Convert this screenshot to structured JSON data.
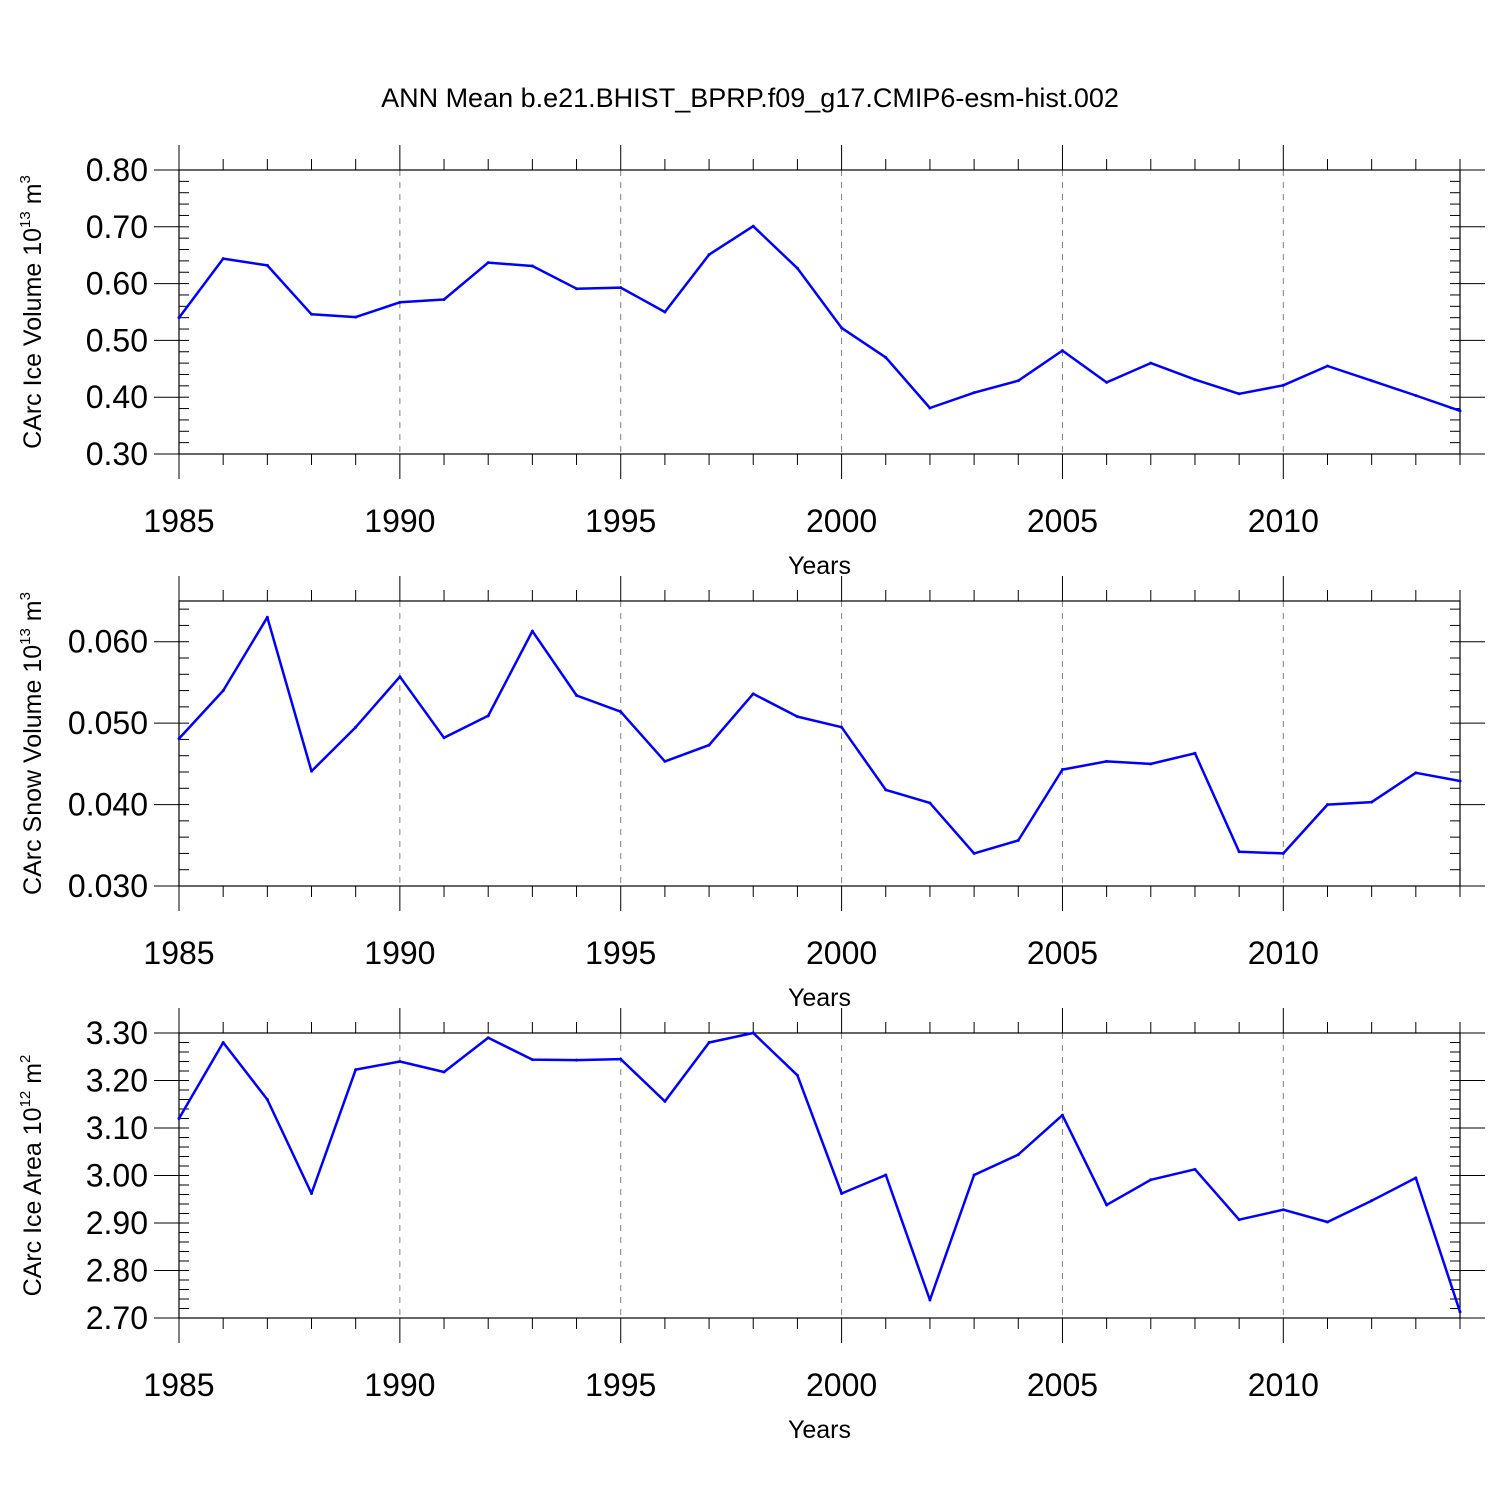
{
  "figure": {
    "title": "ANN Mean b.e21.BHIST_BPRP.f09_g17.CMIP6-esm-hist.002"
  },
  "colors": {
    "line": "#0000ff",
    "axis": "#000000",
    "grid": "#808080"
  },
  "chart_data": [
    {
      "type": "line",
      "xlabel": "Years",
      "ylabel_main": "CArc Ice Volume 10",
      "ylabel_exp": "13",
      "ylabel_unit": " m",
      "ylabel_unit_exp": "3",
      "xlim": [
        1985,
        2014
      ],
      "ylim": [
        0.3,
        0.8
      ],
      "xticks": [
        1985,
        1990,
        1995,
        2000,
        2005,
        2010
      ],
      "xtick_labels": [
        "1985",
        "1990",
        "1995",
        "2000",
        "2005",
        "2010"
      ],
      "yticks": [
        0.3,
        0.4,
        0.5,
        0.6,
        0.7,
        0.8
      ],
      "ytick_labels": [
        "0.30",
        "0.40",
        "0.50",
        "0.60",
        "0.70",
        "0.80"
      ],
      "grid": "vertical-dashed",
      "x": [
        1985,
        1986,
        1987,
        1988,
        1989,
        1990,
        1991,
        1992,
        1993,
        1994,
        1995,
        1996,
        1997,
        1998,
        1999,
        2000,
        2001,
        2002,
        2003,
        2004,
        2005,
        2006,
        2007,
        2008,
        2009,
        2010,
        2011,
        2012,
        2013,
        2014
      ],
      "values": [
        0.54,
        0.644,
        0.632,
        0.546,
        0.541,
        0.567,
        0.572,
        0.637,
        0.631,
        0.591,
        0.593,
        0.55,
        0.651,
        0.701,
        0.627,
        0.522,
        0.47,
        0.381,
        0.408,
        0.429,
        0.482,
        0.426,
        0.46,
        0.431,
        0.406,
        0.421,
        0.455,
        0.429,
        0.403,
        0.376
      ]
    },
    {
      "type": "line",
      "xlabel": "Years",
      "ylabel_main": "CArc Snow Volume 10",
      "ylabel_exp": "13",
      "ylabel_unit": " m",
      "ylabel_unit_exp": "3",
      "xlim": [
        1985,
        2014
      ],
      "ylim": [
        0.03,
        0.065
      ],
      "xticks": [
        1985,
        1990,
        1995,
        2000,
        2005,
        2010
      ],
      "xtick_labels": [
        "1985",
        "1990",
        "1995",
        "2000",
        "2005",
        "2010"
      ],
      "yticks": [
        0.03,
        0.04,
        0.05,
        0.06
      ],
      "ytick_labels": [
        "0.030",
        "0.040",
        "0.050",
        "0.060"
      ],
      "grid": "vertical-dashed",
      "x": [
        1985,
        1986,
        1987,
        1988,
        1989,
        1990,
        1991,
        1992,
        1993,
        1994,
        1995,
        1996,
        1997,
        1998,
        1999,
        2000,
        2001,
        2002,
        2003,
        2004,
        2005,
        2006,
        2007,
        2008,
        2009,
        2010,
        2011,
        2012,
        2013,
        2014
      ],
      "values": [
        0.0481,
        0.054,
        0.063,
        0.0441,
        0.0495,
        0.0557,
        0.0482,
        0.0509,
        0.0613,
        0.0534,
        0.0514,
        0.0453,
        0.0473,
        0.0536,
        0.0508,
        0.0495,
        0.0418,
        0.0402,
        0.034,
        0.0356,
        0.0443,
        0.0453,
        0.045,
        0.0463,
        0.0342,
        0.034,
        0.04,
        0.0403,
        0.0439,
        0.0429
      ]
    },
    {
      "type": "line",
      "xlabel": "Years",
      "ylabel_main": "CArc Ice Area 10",
      "ylabel_exp": "12",
      "ylabel_unit": " m",
      "ylabel_unit_exp": "2",
      "xlim": [
        1985,
        2014
      ],
      "ylim": [
        2.7,
        3.3
      ],
      "xticks": [
        1985,
        1990,
        1995,
        2000,
        2005,
        2010
      ],
      "xtick_labels": [
        "1985",
        "1990",
        "1995",
        "2000",
        "2005",
        "2010"
      ],
      "yticks": [
        2.7,
        2.8,
        2.9,
        3.0,
        3.1,
        3.2,
        3.3
      ],
      "ytick_labels": [
        "2.70",
        "2.80",
        "2.90",
        "3.00",
        "3.10",
        "3.20",
        "3.30"
      ],
      "grid": "vertical-dashed",
      "x": [
        1985,
        1986,
        1987,
        1988,
        1989,
        1990,
        1991,
        1992,
        1993,
        1994,
        1995,
        1996,
        1997,
        1998,
        1999,
        2000,
        2001,
        2002,
        2003,
        2004,
        2005,
        2006,
        2007,
        2008,
        2009,
        2010,
        2011,
        2012,
        2013,
        2014
      ],
      "values": [
        3.12,
        3.28,
        3.16,
        2.962,
        3.223,
        3.24,
        3.218,
        3.29,
        3.244,
        3.243,
        3.245,
        3.156,
        3.28,
        3.3,
        3.211,
        2.962,
        3.001,
        2.738,
        3.001,
        3.044,
        3.127,
        2.938,
        2.991,
        3.013,
        2.907,
        2.928,
        2.902,
        2.947,
        2.995,
        2.713
      ]
    }
  ]
}
